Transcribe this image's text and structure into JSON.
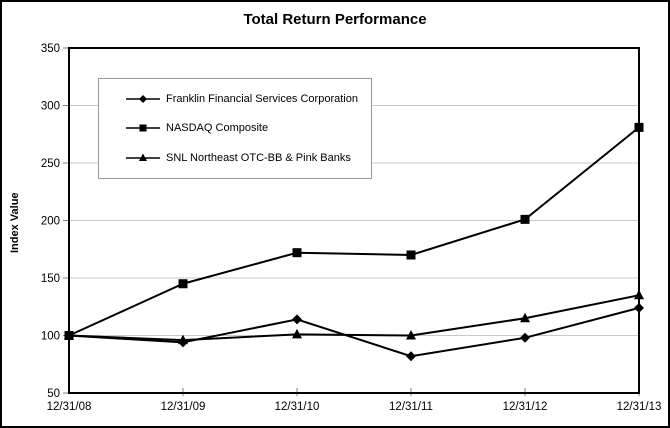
{
  "title": "Total Return Performance",
  "y_axis_label": "Index Value",
  "colors": {
    "line": "#000000",
    "gridline": "#c9c9c9",
    "tick": "#808080",
    "plot_border": "#000000",
    "legend_border": "#999999",
    "background": "#ffffff"
  },
  "chart_data": {
    "type": "line",
    "title": "Total Return Performance",
    "xlabel": "",
    "ylabel": "Index Value",
    "categories": [
      "12/31/08",
      "12/31/09",
      "12/31/10",
      "12/31/11",
      "12/31/12",
      "12/31/13"
    ],
    "series": [
      {
        "name": "Franklin Financial Services Corporation",
        "marker": "diamond",
        "values": [
          100,
          94,
          114,
          82,
          98,
          124
        ]
      },
      {
        "name": "NASDAQ Composite",
        "marker": "square",
        "values": [
          100,
          145,
          172,
          170,
          201,
          281
        ]
      },
      {
        "name": "SNL Northeast OTC-BB & Pink Banks",
        "marker": "triangle",
        "values": [
          100,
          96,
          101,
          100,
          115,
          135
        ]
      }
    ],
    "ylim": [
      50,
      350
    ],
    "y_ticks": [
      50,
      100,
      150,
      200,
      250,
      300,
      350
    ],
    "grid": true,
    "legend_position": "upper-left-inside"
  }
}
